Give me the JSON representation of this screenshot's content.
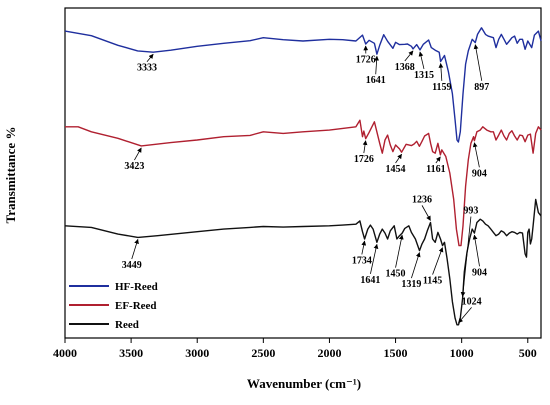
{
  "chart_data": {
    "type": "line",
    "xlabel": "Wavenumber (cm⁻¹)",
    "ylabel": "Transmittance %",
    "xlim": [
      4000,
      400
    ],
    "x_ticks": [
      4000,
      3500,
      3000,
      2500,
      2000,
      1500,
      1000,
      500
    ],
    "x_tick_labels": [
      "4000",
      "3500",
      "3000",
      "2500",
      "2000",
      "1500",
      "1000",
      "500"
    ],
    "legend_position": "bottom-left",
    "series": [
      {
        "name": "HF-Reed",
        "color": "#1f2f9e",
        "points": [
          [
            4000,
            0.93
          ],
          [
            3800,
            0.916
          ],
          [
            3600,
            0.887
          ],
          [
            3450,
            0.87
          ],
          [
            3333,
            0.866
          ],
          [
            3200,
            0.872
          ],
          [
            3000,
            0.884
          ],
          [
            2800,
            0.893
          ],
          [
            2600,
            0.901
          ],
          [
            2500,
            0.91
          ],
          [
            2350,
            0.904
          ],
          [
            2200,
            0.9
          ],
          [
            2000,
            0.905
          ],
          [
            1900,
            0.904
          ],
          [
            1800,
            0.9
          ],
          [
            1750,
            0.918
          ],
          [
            1726,
            0.891
          ],
          [
            1700,
            0.902
          ],
          [
            1660,
            0.893
          ],
          [
            1641,
            0.86
          ],
          [
            1620,
            0.887
          ],
          [
            1590,
            0.919
          ],
          [
            1560,
            0.899
          ],
          [
            1520,
            0.878
          ],
          [
            1500,
            0.896
          ],
          [
            1470,
            0.889
          ],
          [
            1430,
            0.89
          ],
          [
            1410,
            0.891
          ],
          [
            1380,
            0.884
          ],
          [
            1368,
            0.876
          ],
          [
            1340,
            0.889
          ],
          [
            1315,
            0.873
          ],
          [
            1290,
            0.89
          ],
          [
            1250,
            0.903
          ],
          [
            1230,
            0.88
          ],
          [
            1200,
            0.872
          ],
          [
            1170,
            0.866
          ],
          [
            1159,
            0.838
          ],
          [
            1130,
            0.856
          ],
          [
            1100,
            0.807
          ],
          [
            1070,
            0.74
          ],
          [
            1050,
            0.66
          ],
          [
            1035,
            0.6
          ],
          [
            1025,
            0.594
          ],
          [
            1010,
            0.625
          ],
          [
            990,
            0.74
          ],
          [
            970,
            0.83
          ],
          [
            950,
            0.87
          ],
          [
            920,
            0.905
          ],
          [
            897,
            0.895
          ],
          [
            880,
            0.92
          ],
          [
            850,
            0.94
          ],
          [
            820,
            0.92
          ],
          [
            800,
            0.915
          ],
          [
            760,
            0.91
          ],
          [
            740,
            0.88
          ],
          [
            720,
            0.905
          ],
          [
            700,
            0.92
          ],
          [
            680,
            0.905
          ],
          [
            660,
            0.89
          ],
          [
            640,
            0.9
          ],
          [
            620,
            0.91
          ],
          [
            600,
            0.915
          ],
          [
            580,
            0.893
          ],
          [
            560,
            0.905
          ],
          [
            540,
            0.905
          ],
          [
            520,
            0.875
          ],
          [
            500,
            0.9
          ],
          [
            470,
            0.88
          ],
          [
            450,
            0.918
          ],
          [
            420,
            0.93
          ],
          [
            400,
            0.9
          ]
        ]
      },
      {
        "name": "EF-Reed",
        "color": "#b02030",
        "points": [
          [
            4000,
            0.64
          ],
          [
            3900,
            0.64
          ],
          [
            3800,
            0.625
          ],
          [
            3600,
            0.605
          ],
          [
            3423,
            0.582
          ],
          [
            3200,
            0.592
          ],
          [
            3000,
            0.6
          ],
          [
            2800,
            0.61
          ],
          [
            2600,
            0.614
          ],
          [
            2500,
            0.625
          ],
          [
            2350,
            0.62
          ],
          [
            2200,
            0.625
          ],
          [
            2000,
            0.63
          ],
          [
            1900,
            0.635
          ],
          [
            1800,
            0.64
          ],
          [
            1770,
            0.66
          ],
          [
            1750,
            0.61
          ],
          [
            1740,
            0.627
          ],
          [
            1726,
            0.604
          ],
          [
            1700,
            0.623
          ],
          [
            1660,
            0.655
          ],
          [
            1620,
            0.59
          ],
          [
            1600,
            0.56
          ],
          [
            1580,
            0.6
          ],
          [
            1560,
            0.615
          ],
          [
            1540,
            0.585
          ],
          [
            1520,
            0.565
          ],
          [
            1500,
            0.585
          ],
          [
            1470,
            0.573
          ],
          [
            1454,
            0.563
          ],
          [
            1430,
            0.58
          ],
          [
            1420,
            0.587
          ],
          [
            1380,
            0.583
          ],
          [
            1360,
            0.588
          ],
          [
            1340,
            0.596
          ],
          [
            1320,
            0.581
          ],
          [
            1300,
            0.596
          ],
          [
            1280,
            0.612
          ],
          [
            1250,
            0.62
          ],
          [
            1235,
            0.59
          ],
          [
            1220,
            0.565
          ],
          [
            1200,
            0.56
          ],
          [
            1180,
            0.59
          ],
          [
            1161,
            0.555
          ],
          [
            1150,
            0.57
          ],
          [
            1120,
            0.55
          ],
          [
            1090,
            0.5
          ],
          [
            1060,
            0.42
          ],
          [
            1040,
            0.33
          ],
          [
            1020,
            0.28
          ],
          [
            1005,
            0.28
          ],
          [
            990,
            0.34
          ],
          [
            970,
            0.46
          ],
          [
            950,
            0.54
          ],
          [
            930,
            0.59
          ],
          [
            910,
            0.61
          ],
          [
            904,
            0.598
          ],
          [
            885,
            0.625
          ],
          [
            860,
            0.63
          ],
          [
            840,
            0.64
          ],
          [
            810,
            0.63
          ],
          [
            780,
            0.625
          ],
          [
            760,
            0.625
          ],
          [
            740,
            0.6
          ],
          [
            720,
            0.615
          ],
          [
            700,
            0.63
          ],
          [
            680,
            0.612
          ],
          [
            660,
            0.6
          ],
          [
            640,
            0.62
          ],
          [
            620,
            0.628
          ],
          [
            600,
            0.612
          ],
          [
            580,
            0.6
          ],
          [
            560,
            0.615
          ],
          [
            540,
            0.613
          ],
          [
            520,
            0.595
          ],
          [
            500,
            0.615
          ],
          [
            480,
            0.618
          ],
          [
            460,
            0.56
          ],
          [
            440,
            0.62
          ],
          [
            420,
            0.64
          ],
          [
            400,
            0.63
          ]
        ]
      },
      {
        "name": "Reed",
        "color": "#111111",
        "points": [
          [
            4000,
            0.34
          ],
          [
            3800,
            0.335
          ],
          [
            3600,
            0.315
          ],
          [
            3449,
            0.305
          ],
          [
            3300,
            0.31
          ],
          [
            3000,
            0.322
          ],
          [
            2800,
            0.33
          ],
          [
            2600,
            0.335
          ],
          [
            2500,
            0.338
          ],
          [
            2350,
            0.336
          ],
          [
            2200,
            0.338
          ],
          [
            2000,
            0.34
          ],
          [
            1900,
            0.342
          ],
          [
            1800,
            0.345
          ],
          [
            1770,
            0.355
          ],
          [
            1750,
            0.322
          ],
          [
            1734,
            0.3
          ],
          [
            1710,
            0.33
          ],
          [
            1690,
            0.342
          ],
          [
            1670,
            0.33
          ],
          [
            1641,
            0.29
          ],
          [
            1620,
            0.315
          ],
          [
            1600,
            0.33
          ],
          [
            1580,
            0.318
          ],
          [
            1560,
            0.3
          ],
          [
            1540,
            0.325
          ],
          [
            1510,
            0.34
          ],
          [
            1490,
            0.3
          ],
          [
            1470,
            0.31
          ],
          [
            1450,
            0.318
          ],
          [
            1430,
            0.332
          ],
          [
            1400,
            0.34
          ],
          [
            1380,
            0.32
          ],
          [
            1350,
            0.3
          ],
          [
            1319,
            0.265
          ],
          [
            1300,
            0.285
          ],
          [
            1280,
            0.3
          ],
          [
            1260,
            0.325
          ],
          [
            1236,
            0.35
          ],
          [
            1220,
            0.3
          ],
          [
            1200,
            0.29
          ],
          [
            1180,
            0.32
          ],
          [
            1160,
            0.3
          ],
          [
            1145,
            0.28
          ],
          [
            1130,
            0.29
          ],
          [
            1110,
            0.24
          ],
          [
            1090,
            0.18
          ],
          [
            1070,
            0.11
          ],
          [
            1050,
            0.06
          ],
          [
            1035,
            0.04
          ],
          [
            1024,
            0.04
          ],
          [
            1010,
            0.06
          ],
          [
            993,
            0.12
          ],
          [
            980,
            0.2
          ],
          [
            960,
            0.26
          ],
          [
            940,
            0.3
          ],
          [
            920,
            0.33
          ],
          [
            904,
            0.318
          ],
          [
            885,
            0.35
          ],
          [
            860,
            0.36
          ],
          [
            840,
            0.355
          ],
          [
            820,
            0.345
          ],
          [
            800,
            0.34
          ],
          [
            780,
            0.33
          ],
          [
            760,
            0.32
          ],
          [
            740,
            0.31
          ],
          [
            720,
            0.315
          ],
          [
            700,
            0.325
          ],
          [
            680,
            0.32
          ],
          [
            660,
            0.31
          ],
          [
            640,
            0.318
          ],
          [
            620,
            0.322
          ],
          [
            600,
            0.32
          ],
          [
            580,
            0.315
          ],
          [
            560,
            0.32
          ],
          [
            540,
            0.318
          ],
          [
            520,
            0.255
          ],
          [
            510,
            0.245
          ],
          [
            500,
            0.32
          ],
          [
            490,
            0.33
          ],
          [
            480,
            0.285
          ],
          [
            470,
            0.3
          ],
          [
            460,
            0.34
          ],
          [
            440,
            0.42
          ],
          [
            420,
            0.38
          ],
          [
            400,
            0.37
          ]
        ]
      }
    ],
    "annotations": [
      {
        "label": "3333",
        "series": "HF-Reed",
        "x": 3333,
        "text_x": 3380,
        "text_y": 0.81,
        "anchor": "middle"
      },
      {
        "label": "1726",
        "series": "HF-Reed",
        "x": 1726,
        "text_x": 1725,
        "text_y": 0.835,
        "anchor": "middle"
      },
      {
        "label": "1641",
        "series": "HF-Reed",
        "x": 1641,
        "text_x": 1650,
        "text_y": 0.772,
        "anchor": "middle"
      },
      {
        "label": "1368",
        "series": "HF-Reed",
        "x": 1368,
        "text_x": 1430,
        "text_y": 0.812,
        "anchor": "middle"
      },
      {
        "label": "1315",
        "series": "HF-Reed",
        "x": 1315,
        "text_x": 1285,
        "text_y": 0.788,
        "anchor": "middle"
      },
      {
        "label": "1159",
        "series": "HF-Reed",
        "x": 1159,
        "text_x": 1150,
        "text_y": 0.752,
        "anchor": "middle"
      },
      {
        "label": "897",
        "series": "HF-Reed",
        "x": 897,
        "text_x": 848,
        "text_y": 0.752,
        "anchor": "middle"
      },
      {
        "label": "3423",
        "series": "EF-Reed",
        "x": 3423,
        "text_x": 3475,
        "text_y": 0.512,
        "anchor": "middle"
      },
      {
        "label": "1726",
        "series": "EF-Reed",
        "x": 1726,
        "text_x": 1740,
        "text_y": 0.533,
        "anchor": "middle"
      },
      {
        "label": "1454",
        "series": "EF-Reed",
        "x": 1454,
        "text_x": 1500,
        "text_y": 0.503,
        "anchor": "middle"
      },
      {
        "label": "1161",
        "series": "EF-Reed",
        "x": 1161,
        "text_x": 1195,
        "text_y": 0.503,
        "anchor": "middle"
      },
      {
        "label": "904",
        "series": "EF-Reed",
        "x": 904,
        "text_x": 866,
        "text_y": 0.49,
        "anchor": "middle"
      },
      {
        "label": "3449",
        "series": "Reed",
        "x": 3449,
        "text_x": 3495,
        "text_y": 0.212,
        "anchor": "middle"
      },
      {
        "label": "1734",
        "series": "Reed",
        "x": 1734,
        "text_x": 1755,
        "text_y": 0.226,
        "anchor": "middle"
      },
      {
        "label": "1641",
        "series": "Reed",
        "x": 1641,
        "text_x": 1690,
        "text_y": 0.167,
        "anchor": "middle"
      },
      {
        "label": "1450",
        "series": "Reed",
        "x": 1450,
        "text_x": 1500,
        "text_y": 0.186,
        "anchor": "middle"
      },
      {
        "label": "1319",
        "series": "Reed",
        "x": 1319,
        "text_x": 1380,
        "text_y": 0.154,
        "anchor": "middle"
      },
      {
        "label": "1145",
        "series": "Reed",
        "x": 1145,
        "text_x": 1220,
        "text_y": 0.165,
        "anchor": "middle"
      },
      {
        "label": "1236",
        "series": "Reed",
        "x": 1236,
        "text_x": 1300,
        "text_y": 0.411,
        "anchor": "middle"
      },
      {
        "label": "993",
        "series": "Reed",
        "x": 993,
        "text_x": 930,
        "text_y": 0.377,
        "anchor": "middle"
      },
      {
        "label": "904",
        "series": "Reed",
        "x": 904,
        "text_x": 865,
        "text_y": 0.19,
        "anchor": "middle"
      },
      {
        "label": "1024",
        "series": "Reed",
        "x": 1024,
        "text_x": 925,
        "text_y": 0.102,
        "anchor": "middle"
      }
    ]
  }
}
